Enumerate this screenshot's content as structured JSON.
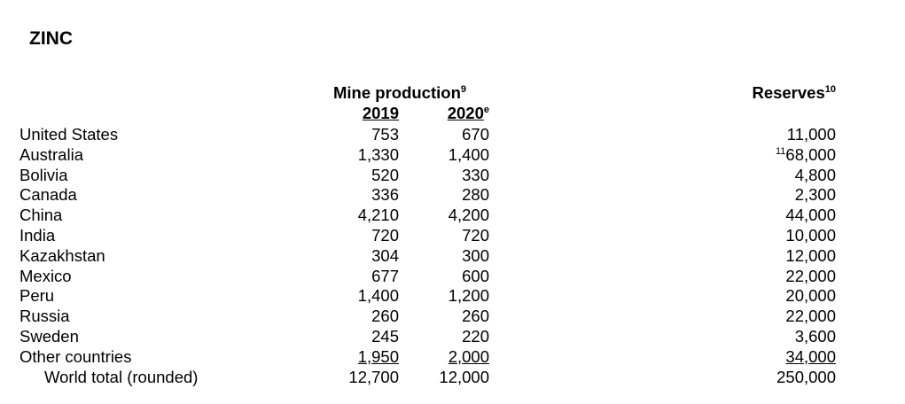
{
  "title": "ZINC",
  "table": {
    "group_header": {
      "text": "Mine production",
      "note": "9"
    },
    "columns": [
      {
        "text": "2019"
      },
      {
        "text": "2020",
        "note": "e"
      }
    ],
    "reserves_header": {
      "text": "Reserves",
      "note": "10"
    },
    "rows": [
      {
        "country": "United States",
        "p2019": "753",
        "p2020": "670",
        "reserves": "11,000"
      },
      {
        "country": "Australia",
        "p2019": "1,330",
        "p2020": "1,400",
        "reserves": "68,000",
        "reserves_note": "11"
      },
      {
        "country": "Bolivia",
        "p2019": "520",
        "p2020": "330",
        "reserves": "4,800"
      },
      {
        "country": "Canada",
        "p2019": "336",
        "p2020": "280",
        "reserves": "2,300"
      },
      {
        "country": "China",
        "p2019": "4,210",
        "p2020": "4,200",
        "reserves": "44,000"
      },
      {
        "country": "India",
        "p2019": "720",
        "p2020": "720",
        "reserves": "10,000"
      },
      {
        "country": "Kazakhstan",
        "p2019": "304",
        "p2020": "300",
        "reserves": "12,000"
      },
      {
        "country": "Mexico",
        "p2019": "677",
        "p2020": "600",
        "reserves": "22,000"
      },
      {
        "country": "Peru",
        "p2019": "1,400",
        "p2020": "1,200",
        "reserves": "20,000"
      },
      {
        "country": "Russia",
        "p2019": "260",
        "p2020": "260",
        "reserves": "22,000"
      },
      {
        "country": "Sweden",
        "p2019": "245",
        "p2020": "220",
        "reserves": "3,600"
      },
      {
        "country": "Other countries",
        "p2019": "1,950",
        "p2020": "2,000",
        "reserves": "34,000"
      }
    ],
    "total": {
      "country": "World total (rounded)",
      "p2019": "12,700",
      "p2020": "12,000",
      "reserves": "250,000"
    }
  }
}
